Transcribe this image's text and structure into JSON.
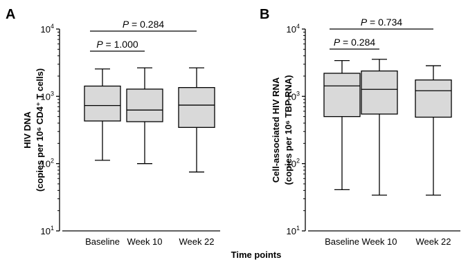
{
  "figure": {
    "shared_xlabel": "Time points"
  },
  "chart_data": [
    {
      "type": "box",
      "panel": "A",
      "categories": [
        "Baseline",
        "Week 10",
        "Week 22"
      ],
      "ylabel_line1": "HIV DNA",
      "ylabel_line2": "(copies per 10⁶ CD4⁺ T cells)",
      "yscale": "log",
      "ylim": [
        10,
        10000
      ],
      "yticks": [
        {
          "value": 10,
          "base": "10",
          "exp": "1"
        },
        {
          "value": 100,
          "base": "10",
          "exp": "2"
        },
        {
          "value": 1000,
          "base": "10",
          "exp": "3"
        },
        {
          "value": 10000,
          "base": "10",
          "exp": "4"
        }
      ],
      "boxes": [
        {
          "category": "Baseline",
          "min": 112,
          "q1": 430,
          "median": 730,
          "q3": 1420,
          "max": 2550
        },
        {
          "category": "Week 10",
          "min": 100,
          "q1": 420,
          "median": 625,
          "q3": 1280,
          "max": 2650
        },
        {
          "category": "Week 22",
          "min": 75,
          "q1": 345,
          "median": 740,
          "q3": 1350,
          "max": 2650
        }
      ],
      "comparisons": [
        {
          "from": "Baseline",
          "to": "Week 22",
          "p_prefix": "P",
          "p_value": "= 0.284"
        },
        {
          "from": "Baseline",
          "to": "Week 10",
          "p_prefix": "P",
          "p_value": "= 1.000"
        }
      ],
      "box_fill": "#d9d9d9",
      "grid": false
    },
    {
      "type": "box",
      "panel": "B",
      "categories": [
        "Baseline",
        "Week 10",
        "Week 22"
      ],
      "ylabel_line1": "Cell-associated HIV RNA",
      "ylabel_line2": "(copies per 10⁶ TBP RNA)",
      "yscale": "log",
      "ylim": [
        10,
        10000
      ],
      "yticks": [
        {
          "value": 10,
          "base": "10",
          "exp": "1"
        },
        {
          "value": 100,
          "base": "10",
          "exp": "2"
        },
        {
          "value": 1000,
          "base": "10",
          "exp": "3"
        },
        {
          "value": 10000,
          "base": "10",
          "exp": "4"
        }
      ],
      "boxes": [
        {
          "category": "Baseline",
          "min": 41,
          "q1": 500,
          "median": 1430,
          "q3": 2200,
          "max": 3400
        },
        {
          "category": "Week 10",
          "min": 34,
          "q1": 545,
          "median": 1270,
          "q3": 2380,
          "max": 3550
        },
        {
          "category": "Week 22",
          "min": 34,
          "q1": 490,
          "median": 1210,
          "q3": 1750,
          "max": 2850
        }
      ],
      "comparisons": [
        {
          "from": "Baseline",
          "to": "Week 22",
          "p_prefix": "P",
          "p_value": "= 0.734"
        },
        {
          "from": "Baseline",
          "to": "Week 10",
          "p_prefix": "P",
          "p_value": "= 0.284"
        }
      ],
      "box_fill": "#d9d9d9",
      "grid": false
    }
  ]
}
